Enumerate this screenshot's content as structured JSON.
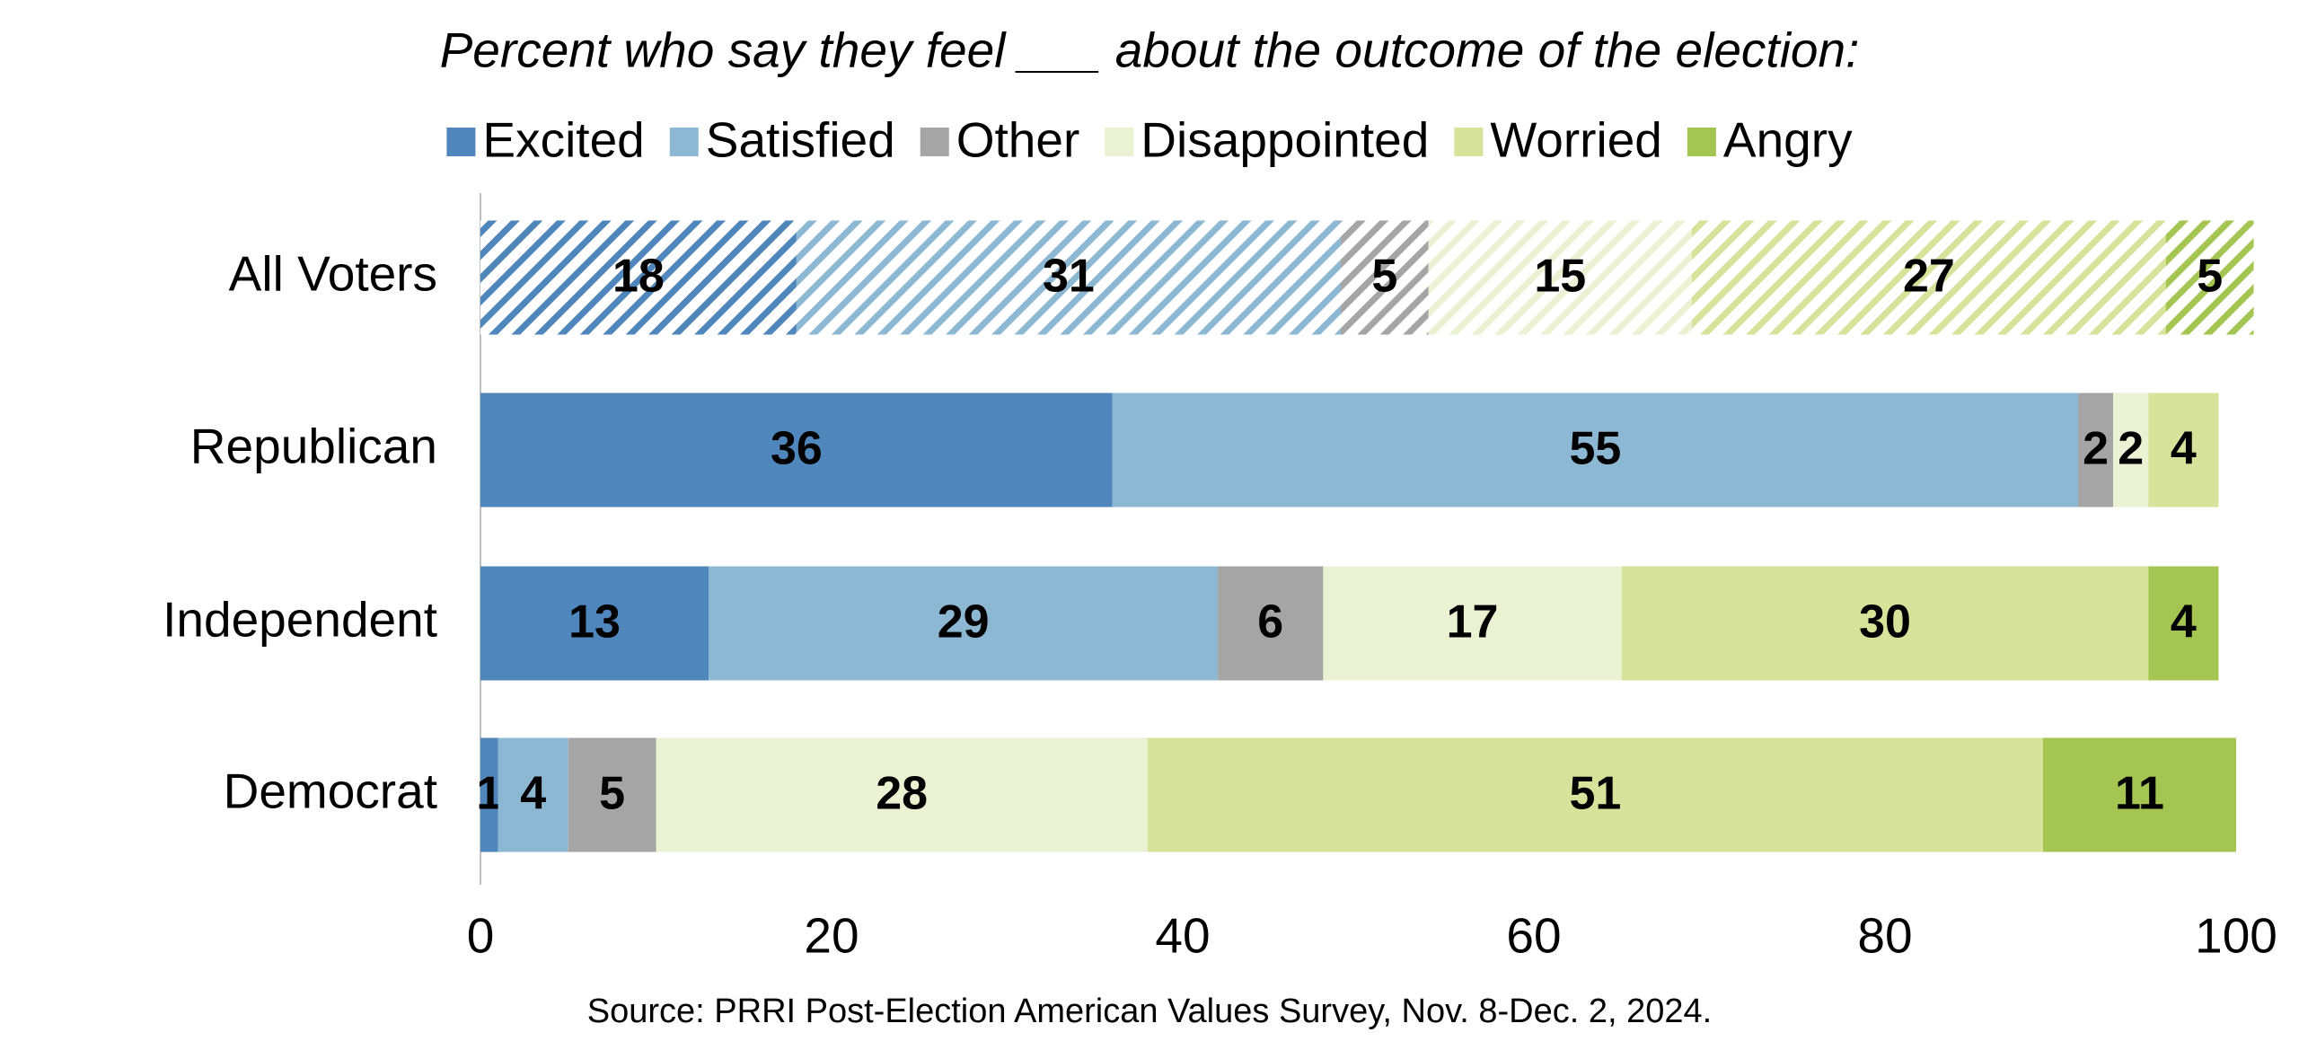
{
  "chart_data": {
    "type": "stacked_bar_horizontal",
    "title": "Percent who say they feel ___ about the outcome of the election:",
    "categories": [
      "All Voters",
      "Republican",
      "Independent",
      "Democrat"
    ],
    "series": [
      {
        "name": "Excited",
        "color": "#4f86bb",
        "label_color": "#ffffff",
        "values": [
          18,
          36,
          13,
          1
        ]
      },
      {
        "name": "Satisfied",
        "color": "#8db8d3",
        "label_color": "#ffffff",
        "values": [
          31,
          55,
          29,
          4
        ]
      },
      {
        "name": "Other",
        "color": "#a5a5a5",
        "label_color": "#ffffff",
        "values": [
          5,
          2,
          6,
          5
        ]
      },
      {
        "name": "Disappointed",
        "color": "#ebf1d3",
        "label_color": "#000000",
        "values": [
          15,
          2,
          17,
          28
        ]
      },
      {
        "name": "Worried",
        "color": "#d7e29a",
        "label_color": "#000000",
        "values": [
          27,
          4,
          30,
          51
        ]
      },
      {
        "name": "Angry",
        "color": "#a5c552",
        "label_color": "#000000",
        "values": [
          5,
          null,
          4,
          11
        ]
      }
    ],
    "xlim": [
      0,
      100
    ],
    "xticks": [
      0,
      20,
      40,
      60,
      80,
      100
    ],
    "grid": false,
    "legend": "top",
    "source": "Source: PRRI Post-Election American Values Survey, Nov. 8-Dec. 2, 2024."
  }
}
